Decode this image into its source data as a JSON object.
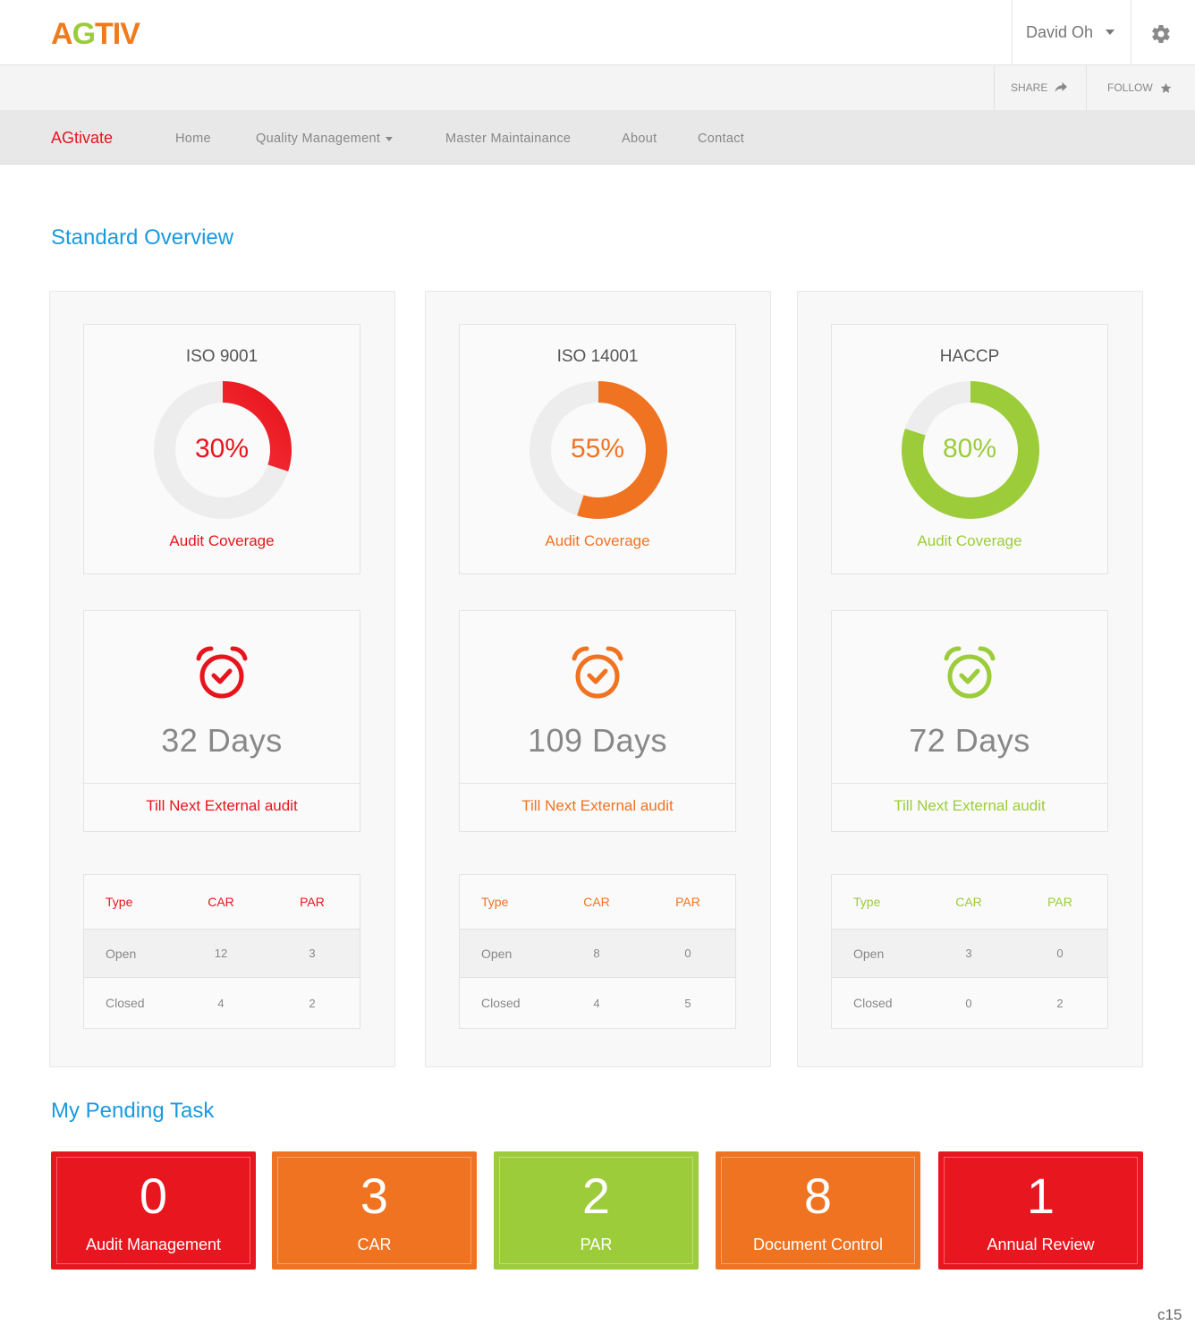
{
  "header": {
    "logo": {
      "part1": "AG",
      "part2": "TIV",
      "color1": "#f07b1a",
      "color2": "#f07b1a",
      "accent": "#9ccc3c"
    },
    "user_name": "David Oh",
    "settings_icon": "gear-icon"
  },
  "actions": {
    "share_label": "SHARE",
    "follow_label": "FOLLOW"
  },
  "nav": {
    "brand": "AGtivate",
    "items": [
      {
        "label": "Home"
      },
      {
        "label": "Quality Management"
      },
      {
        "label": "Master Maintainance"
      },
      {
        "label": "About"
      },
      {
        "label": "Contact"
      }
    ]
  },
  "overview": {
    "title": "Standard Overview",
    "standards": [
      {
        "name": "ISO 9001",
        "coverage": 30,
        "coverage_text": "30%",
        "coverage_label": "Audit Coverage",
        "days_text": "32 Days",
        "days_label": "Till Next External audit",
        "color": "#e8141c",
        "gradient_light": "#ff4a55",
        "table": {
          "headers": [
            "Type",
            "CAR",
            "PAR"
          ],
          "rows": [
            [
              "Open",
              "12",
              "3"
            ],
            [
              "Closed",
              "4",
              "2"
            ]
          ]
        }
      },
      {
        "name": "ISO 14001",
        "coverage": 55,
        "coverage_text": "55%",
        "coverage_label": "Audit Coverage",
        "days_text": "109 Days",
        "days_label": "Till Next External audit",
        "color": "#f07322",
        "gradient_light": "#f07322",
        "table": {
          "headers": [
            "Type",
            "CAR",
            "PAR"
          ],
          "rows": [
            [
              "Open",
              "8",
              "0"
            ],
            [
              "Closed",
              "4",
              "5"
            ]
          ]
        }
      },
      {
        "name": "HACCP",
        "coverage": 80,
        "coverage_text": "80%",
        "coverage_label": "Audit Coverage",
        "days_text": "72 Days",
        "days_label": "Till Next External audit",
        "color": "#9ccc3a",
        "gradient_light": "#9ccc3a",
        "table": {
          "headers": [
            "Type",
            "CAR",
            "PAR"
          ],
          "rows": [
            [
              "Open",
              "3",
              "0"
            ],
            [
              "Closed",
              "0",
              "2"
            ]
          ]
        }
      }
    ]
  },
  "pending": {
    "title": "My Pending Task",
    "tiles": [
      {
        "count": "0",
        "label": "Audit Management",
        "color": "#e8161e"
      },
      {
        "count": "3",
        "label": "CAR",
        "color": "#f07322"
      },
      {
        "count": "2",
        "label": "PAR",
        "color": "#9ccc3a"
      },
      {
        "count": "8",
        "label": "Document Control",
        "color": "#f07322"
      },
      {
        "count": "1",
        "label": "Annual Review",
        "color": "#e8161e"
      }
    ]
  },
  "footer_code": "c15"
}
